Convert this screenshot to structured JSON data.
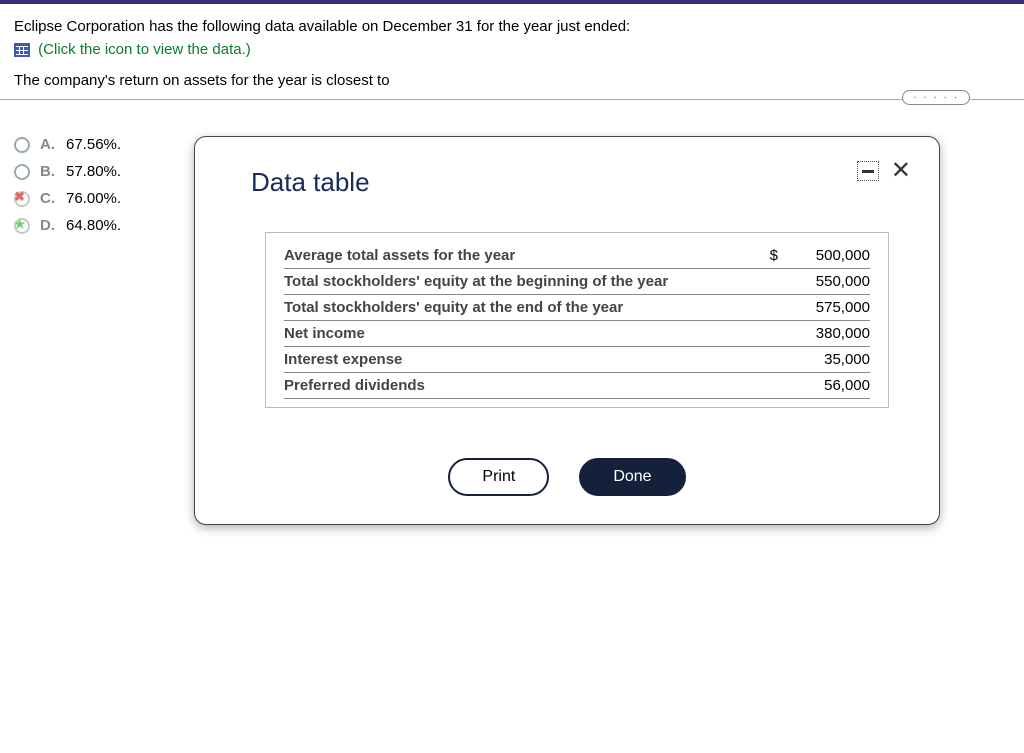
{
  "question": {
    "line1": "Eclipse Corporation has the following data available on December 31 for the year just ended:",
    "clickText": "(Click the icon to view the data.)",
    "line3": "The company's return on assets for the year is closest to"
  },
  "dotsIndicator": "· · · · ·",
  "options": [
    {
      "letter": "A.",
      "text": "67.56%.",
      "state": "unselected"
    },
    {
      "letter": "B.",
      "text": "57.80%.",
      "state": "unselected"
    },
    {
      "letter": "C.",
      "text": "76.00%.",
      "state": "wrong"
    },
    {
      "letter": "D.",
      "text": "64.80%.",
      "state": "correct"
    }
  ],
  "modal": {
    "title": "Data table",
    "rows": [
      {
        "label": "Average total assets for the year",
        "dollar": "$",
        "value": "500,000"
      },
      {
        "label": "Total stockholders' equity at the beginning of the year",
        "dollar": "",
        "value": "550,000"
      },
      {
        "label": "Total stockholders' equity at the end of the year",
        "dollar": "",
        "value": "575,000"
      },
      {
        "label": "Net income",
        "dollar": "",
        "value": "380,000"
      },
      {
        "label": "Interest expense",
        "dollar": "",
        "value": "35,000"
      },
      {
        "label": "Preferred dividends",
        "dollar": "",
        "value": "56,000"
      }
    ],
    "printLabel": "Print",
    "doneLabel": "Done"
  },
  "colors": {
    "topbar": "#3a2e7a",
    "linkGreen": "#0a7d2e",
    "modalTitle": "#1a2a5a",
    "doneBg": "#14213a"
  }
}
